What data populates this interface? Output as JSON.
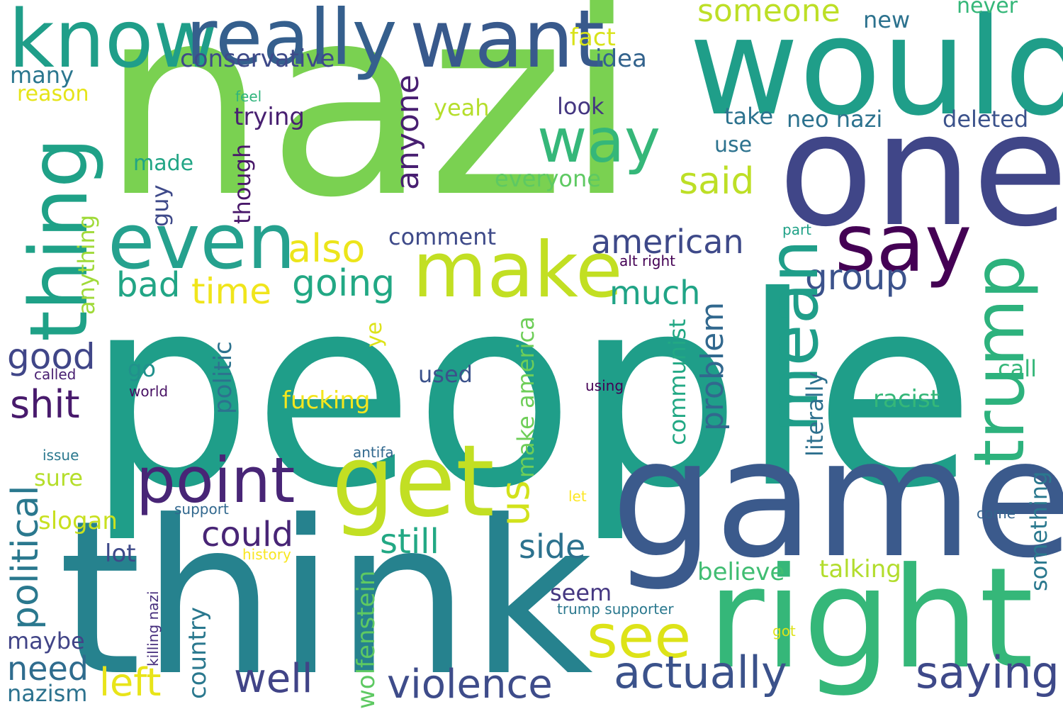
{
  "words": [
    {
      "text": "nazi",
      "color": "#7ad151"
    },
    {
      "text": "people",
      "color": "#1f9e89"
    },
    {
      "text": "think",
      "color": "#26828e"
    },
    {
      "text": "game",
      "color": "#3b5a8c"
    },
    {
      "text": "one",
      "color": "#404688"
    },
    {
      "text": "would",
      "color": "#1f9e89"
    },
    {
      "text": "right",
      "color": "#35b779"
    },
    {
      "text": "know",
      "color": "#1f9e89"
    },
    {
      "text": "really",
      "color": "#355f8d"
    },
    {
      "text": "want",
      "color": "#38598c"
    },
    {
      "text": "thing",
      "color": "#1fa187"
    },
    {
      "text": "even",
      "color": "#25a18e"
    },
    {
      "text": "make",
      "color": "#c2df23"
    },
    {
      "text": "get",
      "color": "#c2df23"
    },
    {
      "text": "say",
      "color": "#440154"
    },
    {
      "text": "mean",
      "color": "#1f9e89"
    },
    {
      "text": "trump",
      "color": "#2db27d"
    },
    {
      "text": "way",
      "color": "#35b779"
    },
    {
      "text": "point",
      "color": "#482576"
    },
    {
      "text": "see",
      "color": "#dde318"
    },
    {
      "text": "saying",
      "color": "#3e4989"
    },
    {
      "text": "actually",
      "color": "#3b528b"
    },
    {
      "text": "violence",
      "color": "#3e4c8a"
    },
    {
      "text": "well",
      "color": "#414487"
    },
    {
      "text": "left",
      "color": "#e8e419"
    },
    {
      "text": "could",
      "color": "#482576"
    },
    {
      "text": "still",
      "color": "#22a884"
    },
    {
      "text": "side",
      "color": "#2c728e"
    },
    {
      "text": "also",
      "color": "#ece51b"
    },
    {
      "text": "time",
      "color": "#f0e51c"
    },
    {
      "text": "going",
      "color": "#22a884"
    },
    {
      "text": "group",
      "color": "#3b528b"
    },
    {
      "text": "american",
      "color": "#3e4989"
    },
    {
      "text": "much",
      "color": "#20a486"
    },
    {
      "text": "bad",
      "color": "#21a585"
    },
    {
      "text": "good",
      "color": "#404688"
    },
    {
      "text": "shit",
      "color": "#481a6c"
    },
    {
      "text": "said",
      "color": "#bddf26"
    },
    {
      "text": "anyone",
      "color": "#481f71"
    },
    {
      "text": "someone",
      "color": "#bddf26"
    },
    {
      "text": "fact",
      "color": "#d8e219"
    },
    {
      "text": "new",
      "color": "#2c728e"
    },
    {
      "text": "never",
      "color": "#35b779"
    },
    {
      "text": "conservative",
      "color": "#3e4a89"
    },
    {
      "text": "idea",
      "color": "#33638d"
    },
    {
      "text": "many",
      "color": "#2a768e"
    },
    {
      "text": "reason",
      "color": "#e5e419"
    },
    {
      "text": "feel",
      "color": "#2fb47c"
    },
    {
      "text": "trying",
      "color": "#482071"
    },
    {
      "text": "look",
      "color": "#453781"
    },
    {
      "text": "yeah",
      "color": "#b5de2b"
    },
    {
      "text": "take",
      "color": "#2c728e"
    },
    {
      "text": "neo nazi",
      "color": "#2c728e"
    },
    {
      "text": "deleted",
      "color": "#3b528b"
    },
    {
      "text": "use",
      "color": "#2c728e"
    },
    {
      "text": "made",
      "color": "#21a585"
    },
    {
      "text": "everyone",
      "color": "#5ec962"
    },
    {
      "text": "guy",
      "color": "#3e4989"
    },
    {
      "text": "though",
      "color": "#481769"
    },
    {
      "text": "anything",
      "color": "#a0da39"
    },
    {
      "text": "comment",
      "color": "#3e4a89"
    },
    {
      "text": "part",
      "color": "#1fa187"
    },
    {
      "text": "alt right",
      "color": "#440154"
    },
    {
      "text": "problem",
      "color": "#31688e"
    },
    {
      "text": "politic",
      "color": "#2c728e"
    },
    {
      "text": "go",
      "color": "#21918c"
    },
    {
      "text": "called",
      "color": "#481f71"
    },
    {
      "text": "world",
      "color": "#471063"
    },
    {
      "text": "used",
      "color": "#3b528b"
    },
    {
      "text": "ye",
      "color": "#dde318"
    },
    {
      "text": "make america",
      "color": "#6ece58"
    },
    {
      "text": "communist",
      "color": "#22a884"
    },
    {
      "text": "literally",
      "color": "#2d708e"
    },
    {
      "text": "racist",
      "color": "#35b779"
    },
    {
      "text": "call",
      "color": "#35b779"
    },
    {
      "text": "using",
      "color": "#440154"
    },
    {
      "text": "fucking",
      "color": "#f4e61e"
    },
    {
      "text": "us",
      "color": "#d2e21b"
    },
    {
      "text": "political",
      "color": "#2a788e"
    },
    {
      "text": "issue",
      "color": "#2a788e"
    },
    {
      "text": "antifa",
      "color": "#31688e"
    },
    {
      "text": "sure",
      "color": "#b5de2b"
    },
    {
      "text": "slogan",
      "color": "#c8e020"
    },
    {
      "text": "support",
      "color": "#31688e"
    },
    {
      "text": "let",
      "color": "#fde725"
    },
    {
      "text": "come",
      "color": "#33638d"
    },
    {
      "text": "something",
      "color": "#2a788e"
    },
    {
      "text": "lot",
      "color": "#3e4989"
    },
    {
      "text": "history",
      "color": "#f8e621"
    },
    {
      "text": "wolfenstein",
      "color": "#5ec962"
    },
    {
      "text": "talking",
      "color": "#b2dd2d"
    },
    {
      "text": "believe",
      "color": "#40bd72"
    },
    {
      "text": "seem",
      "color": "#453781"
    },
    {
      "text": "trump supporter",
      "color": "#2a788e"
    },
    {
      "text": "killing nazi",
      "color": "#472f7d"
    },
    {
      "text": "country",
      "color": "#2a788e"
    },
    {
      "text": "got",
      "color": "#dde318"
    },
    {
      "text": "maybe",
      "color": "#414487"
    },
    {
      "text": "need",
      "color": "#2f6c8e"
    },
    {
      "text": "nazism",
      "color": "#2c728e"
    }
  ]
}
